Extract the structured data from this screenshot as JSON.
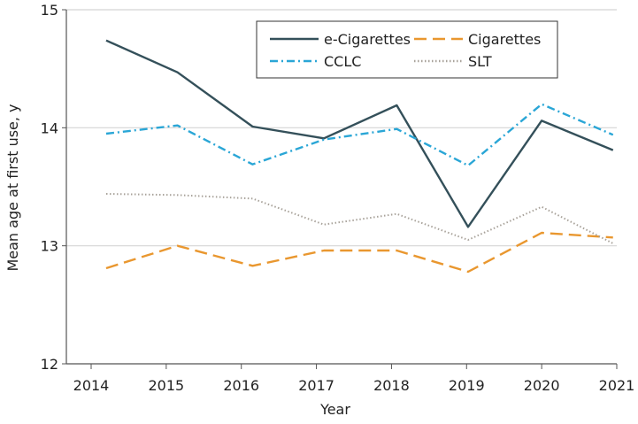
{
  "chart_data": {
    "type": "line",
    "title": "",
    "xlabel": "Year",
    "ylabel": "Mean age at first use, y",
    "xlim": [
      2014,
      2021
    ],
    "ylim": [
      12,
      15
    ],
    "xticks": [
      "2014",
      "2015",
      "2016",
      "2017",
      "2018",
      "2019",
      "2020",
      "2021"
    ],
    "yticks": [
      "12",
      "13",
      "14",
      "15"
    ],
    "grid": "horizontal",
    "legend": "top-right",
    "x": [
      2014.2,
      2015.15,
      2016.15,
      2017.1,
      2018.07,
      2019.02,
      2020.0,
      2020.95
    ],
    "series": [
      {
        "name": "e-Cigarettes",
        "color": "#34505a",
        "dash": "solid",
        "values": [
          14.74,
          14.47,
          14.01,
          13.91,
          14.19,
          13.16,
          14.06,
          13.81
        ]
      },
      {
        "name": "Cigarettes",
        "color": "#e9972f",
        "dash": "dashed",
        "values": [
          12.81,
          13.0,
          12.83,
          12.96,
          12.96,
          12.78,
          13.11,
          13.07
        ]
      },
      {
        "name": "CCLC",
        "color": "#2aa6d6",
        "dash": "dash-dot",
        "values": [
          13.95,
          14.02,
          13.69,
          13.9,
          13.99,
          13.68,
          14.2,
          13.94
        ]
      },
      {
        "name": "SLT",
        "color": "#a8a29a",
        "dash": "dotted",
        "values": [
          13.44,
          13.43,
          13.4,
          13.18,
          13.27,
          13.05,
          13.33,
          13.02
        ]
      }
    ]
  }
}
